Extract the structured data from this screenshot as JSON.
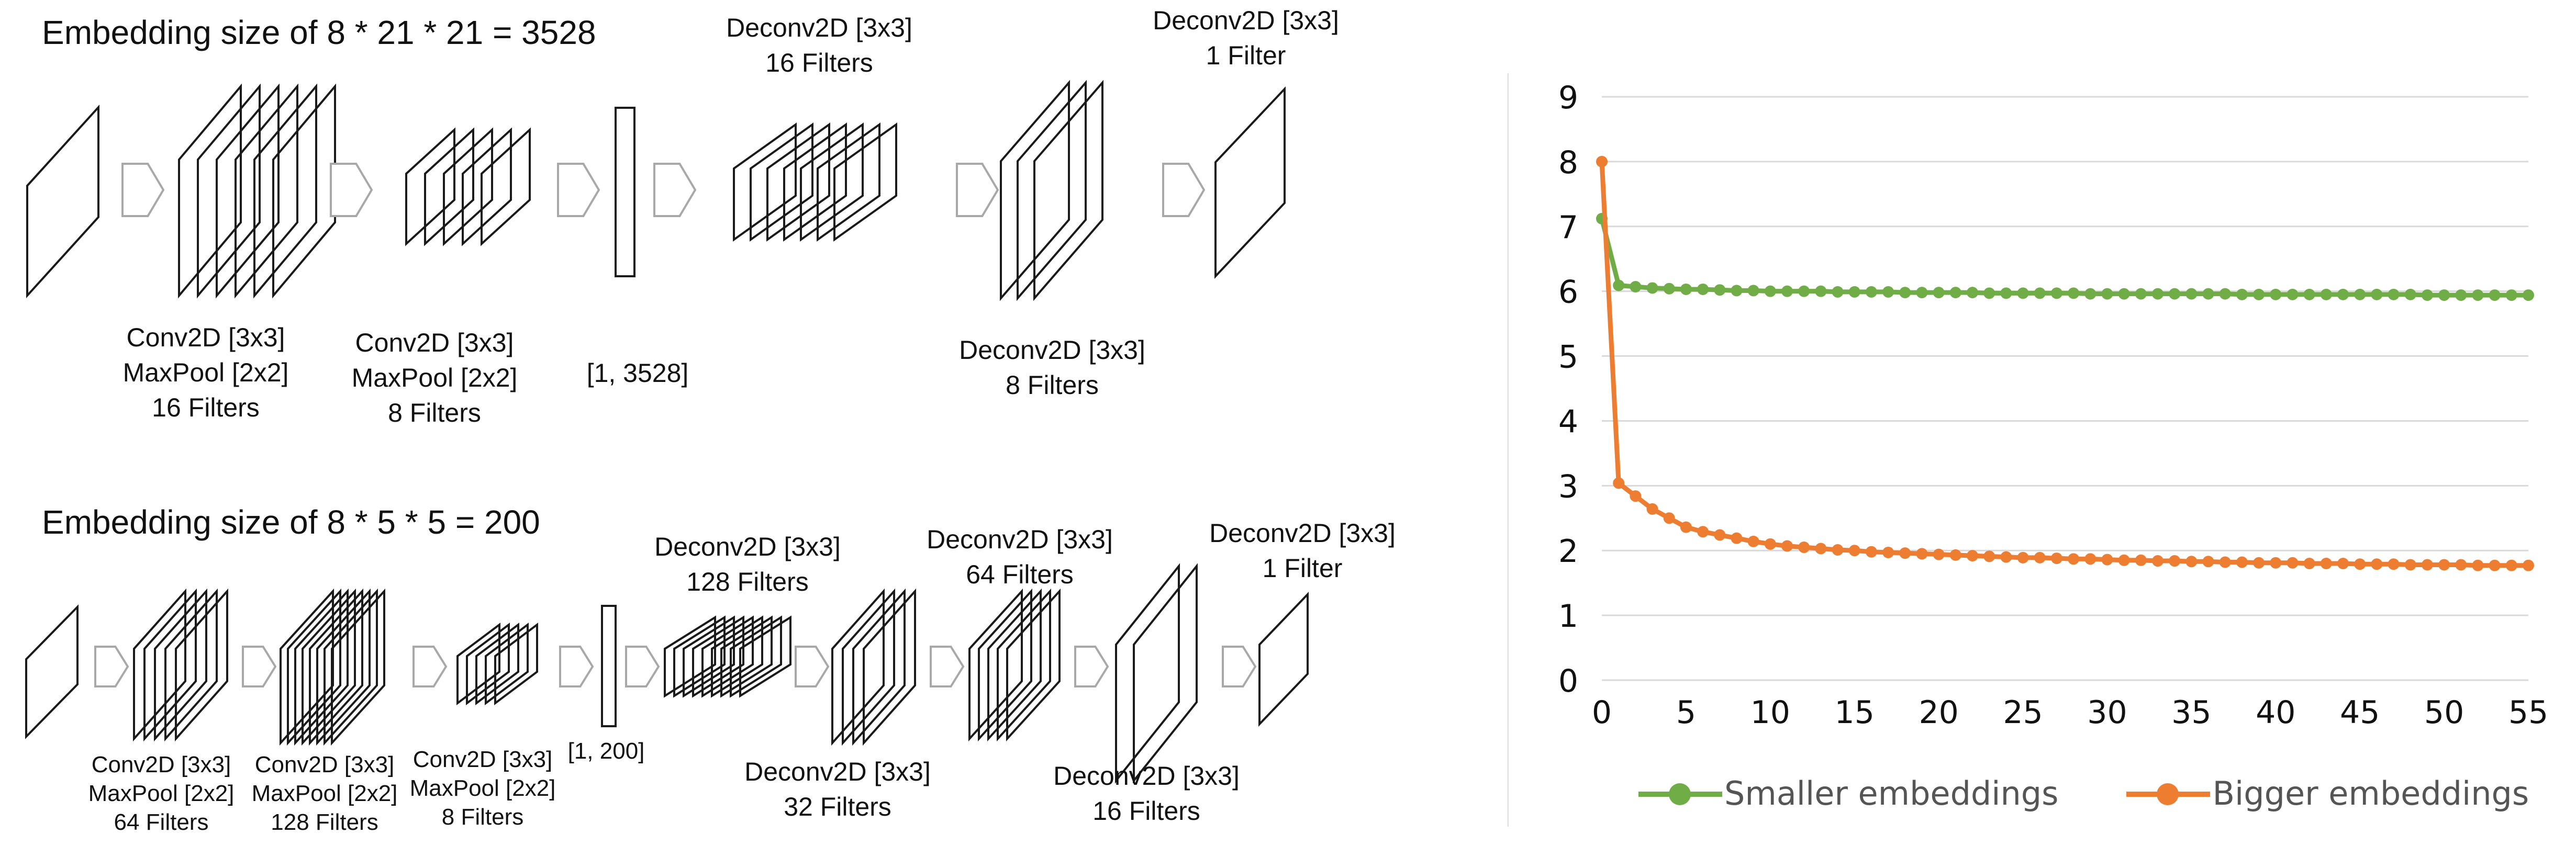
{
  "diagram": {
    "top": {
      "heading": "Embedding size of 8 *  21 * 21 = 3528",
      "labels": {
        "conv1": [
          "Conv2D [3x3]",
          "MaxPool [2x2]",
          "16 Filters"
        ],
        "conv2": [
          "Conv2D [3x3]",
          "MaxPool [2x2]",
          "8 Filters"
        ],
        "flat": "[1, 3528]",
        "deconv1": [
          "Deconv2D [3x3]",
          "16 Filters"
        ],
        "deconv2": [
          "Deconv2D [3x3]",
          "8 Filters"
        ],
        "deconv3": [
          "Deconv2D [3x3]",
          "1 Filter"
        ]
      }
    },
    "bottom": {
      "heading": "Embedding size of 8 * 5 * 5 = 200",
      "labels": {
        "conv1": [
          "Conv2D [3x3]",
          "MaxPool [2x2]",
          "64 Filters"
        ],
        "conv2": [
          "Conv2D [3x3]",
          "MaxPool [2x2]",
          "128 Filters"
        ],
        "conv3": [
          "Conv2D [3x3]",
          "MaxPool [2x2]",
          "8 Filters"
        ],
        "flat": "[1, 200]",
        "deconv1": [
          "Deconv2D [3x3]",
          "128 Filters"
        ],
        "deconv2": [
          "Deconv2D [3x3]",
          "32 Filters"
        ],
        "deconv3": [
          "Deconv2D [3x3]",
          "64 Filters"
        ],
        "deconv4": [
          "Deconv2D [3x3]",
          "16 Filters"
        ],
        "deconv5": [
          "Deconv2D [3x3]",
          "1 Filter"
        ]
      }
    }
  },
  "chart_data": {
    "type": "line",
    "title": "",
    "xlabel": "",
    "ylabel": "",
    "xlim": [
      0,
      55
    ],
    "ylim": [
      0,
      9
    ],
    "x_ticks": [
      0,
      5,
      10,
      15,
      20,
      25,
      30,
      35,
      40,
      45,
      50,
      55
    ],
    "y_ticks": [
      0,
      1,
      2,
      3,
      4,
      5,
      6,
      7,
      8,
      9
    ],
    "grid": true,
    "legend_position": "bottom",
    "x": [
      0,
      1,
      2,
      3,
      4,
      5,
      6,
      7,
      8,
      9,
      10,
      11,
      12,
      13,
      14,
      15,
      16,
      17,
      18,
      19,
      20,
      21,
      22,
      23,
      24,
      25,
      26,
      27,
      28,
      29,
      30,
      31,
      32,
      33,
      34,
      35,
      36,
      37,
      38,
      39,
      40,
      41,
      42,
      43,
      44,
      45,
      46,
      47,
      48,
      49,
      50,
      51,
      52,
      53,
      54,
      55
    ],
    "series": [
      {
        "name": "Smaller embeddings",
        "color": "#70ad47",
        "values": [
          7.12,
          6.09,
          6.07,
          6.05,
          6.04,
          6.03,
          6.03,
          6.02,
          6.01,
          6.01,
          6.0,
          6.0,
          6.0,
          6.0,
          5.99,
          5.99,
          5.99,
          5.99,
          5.98,
          5.98,
          5.98,
          5.98,
          5.98,
          5.97,
          5.97,
          5.97,
          5.97,
          5.97,
          5.97,
          5.96,
          5.96,
          5.96,
          5.96,
          5.96,
          5.96,
          5.96,
          5.96,
          5.96,
          5.95,
          5.95,
          5.95,
          5.95,
          5.95,
          5.95,
          5.95,
          5.95,
          5.95,
          5.95,
          5.95,
          5.94,
          5.94,
          5.94,
          5.94,
          5.94,
          5.94,
          5.94
        ]
      },
      {
        "name": "Bigger embeddings",
        "color": "#ed7d31",
        "values": [
          8.0,
          3.04,
          2.84,
          2.64,
          2.5,
          2.36,
          2.29,
          2.24,
          2.19,
          2.14,
          2.1,
          2.07,
          2.05,
          2.03,
          2.01,
          2.0,
          1.98,
          1.97,
          1.96,
          1.95,
          1.94,
          1.93,
          1.92,
          1.91,
          1.9,
          1.89,
          1.89,
          1.88,
          1.87,
          1.87,
          1.86,
          1.85,
          1.85,
          1.84,
          1.84,
          1.83,
          1.83,
          1.82,
          1.82,
          1.81,
          1.81,
          1.81,
          1.8,
          1.8,
          1.8,
          1.79,
          1.79,
          1.79,
          1.78,
          1.78,
          1.78,
          1.78,
          1.77,
          1.77,
          1.77,
          1.77
        ]
      }
    ]
  }
}
